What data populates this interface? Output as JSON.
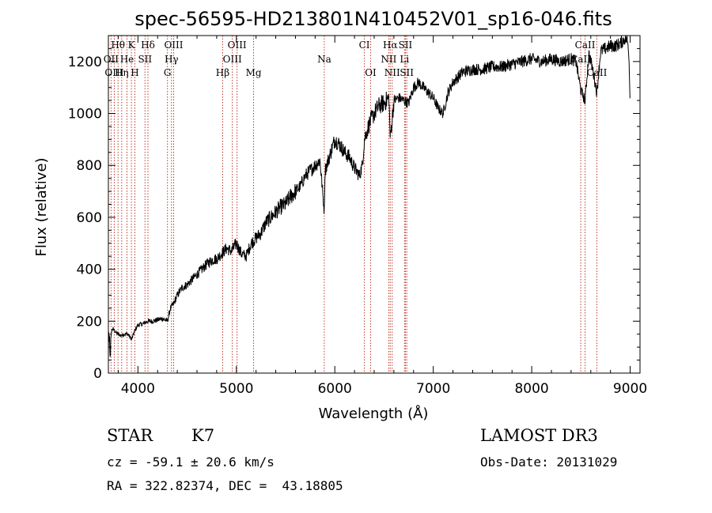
{
  "chart_data": {
    "type": "line",
    "title": "spec-56595-HD213801N410452V01_sp16-046.fits",
    "xlabel": "Wavelength (Å)",
    "ylabel": "Flux (relative)",
    "xlim": [
      3700,
      9100
    ],
    "ylim": [
      0,
      1300
    ],
    "xticks": [
      4000,
      5000,
      6000,
      7000,
      8000,
      9000
    ],
    "yticks": [
      0,
      200,
      400,
      600,
      800,
      1000,
      1200
    ],
    "spectrum_anchors": {
      "x": [
        3700,
        3720,
        3740,
        3760,
        3780,
        3800,
        3830,
        3860,
        3900,
        3935,
        3970,
        4000,
        4050,
        4100,
        4150,
        4200,
        4250,
        4300,
        4330,
        4360,
        4400,
        4450,
        4500,
        4550,
        4600,
        4650,
        4700,
        4750,
        4800,
        4850,
        4900,
        4950,
        5000,
        5050,
        5100,
        5150,
        5200,
        5250,
        5300,
        5350,
        5400,
        5450,
        5500,
        5550,
        5600,
        5650,
        5700,
        5750,
        5800,
        5850,
        5893,
        5900,
        5950,
        6000,
        6050,
        6100,
        6150,
        6200,
        6250,
        6280,
        6300,
        6350,
        6400,
        6450,
        6500,
        6550,
        6563,
        6600,
        6650,
        6700,
        6750,
        6800,
        6850,
        6900,
        6950,
        7000,
        7050,
        7100,
        7150,
        7200,
        7300,
        7400,
        7500,
        7600,
        7700,
        7800,
        7900,
        8000,
        8100,
        8200,
        8300,
        8400,
        8450,
        8498,
        8542,
        8580,
        8620,
        8662,
        8700,
        8750,
        8800,
        8850,
        8900,
        8950,
        8970,
        8985,
        9000
      ],
      "y": [
        40,
        140,
        170,
        165,
        155,
        150,
        145,
        150,
        150,
        130,
        165,
        185,
        190,
        200,
        200,
        205,
        210,
        200,
        250,
        265,
        300,
        330,
        340,
        360,
        380,
        400,
        420,
        435,
        440,
        460,
        480,
        470,
        500,
        460,
        450,
        500,
        520,
        540,
        580,
        600,
        620,
        640,
        650,
        680,
        700,
        720,
        760,
        780,
        800,
        820,
        620,
        780,
        840,
        900,
        880,
        850,
        830,
        790,
        760,
        800,
        900,
        960,
        1000,
        1030,
        1040,
        1060,
        900,
        1050,
        1060,
        1050,
        1040,
        1100,
        1120,
        1100,
        1080,
        1060,
        1020,
        1000,
        1080,
        1120,
        1160,
        1170,
        1170,
        1180,
        1180,
        1190,
        1200,
        1210,
        1200,
        1210,
        1200,
        1210,
        1200,
        1090,
        1050,
        1230,
        1170,
        1080,
        1240,
        1250,
        1260,
        1260,
        1270,
        1290,
        1280,
        1250,
        1050
      ]
    },
    "spectral_lines": [
      {
        "name": "Hθ",
        "x": 3798,
        "row": 1
      },
      {
        "name": "K",
        "x": 3934,
        "row": 1
      },
      {
        "name": "Hδ",
        "x": 4102,
        "row": 1
      },
      {
        "name": "OIII",
        "x": 4363,
        "row": 1
      },
      {
        "name": "OIII",
        "x": 5007,
        "row": 1
      },
      {
        "name": "Na",
        "x": 5893,
        "row": 2
      },
      {
        "name": "CI",
        "x": 6300,
        "row": 1
      },
      {
        "name": "Hα",
        "x": 6563,
        "row": 1
      },
      {
        "name": "SII",
        "x": 6717,
        "row": 1
      },
      {
        "name": "CaII",
        "x": 8542,
        "row": 1
      },
      {
        "name": "OII",
        "x": 3727,
        "row": 2
      },
      {
        "name": "He",
        "x": 3889,
        "row": 2
      },
      {
        "name": "SII",
        "x": 4072,
        "row": 2
      },
      {
        "name": "Hγ",
        "x": 4341,
        "row": 2
      },
      {
        "name": "OIII",
        "x": 4959,
        "row": 2
      },
      {
        "name": "NII",
        "x": 6548,
        "row": 2
      },
      {
        "name": "Li",
        "x": 6708,
        "row": 2
      },
      {
        "name": "CaII",
        "x": 8498,
        "row": 2
      },
      {
        "name": "OIII",
        "x": 3760,
        "row": 3
      },
      {
        "name": "Hη",
        "x": 3835,
        "row": 3
      },
      {
        "name": "H",
        "x": 3969,
        "row": 3
      },
      {
        "name": "G",
        "x": 4300,
        "row": 3
      },
      {
        "name": "Hβ",
        "x": 4861,
        "row": 3
      },
      {
        "name": "Mg",
        "x": 5175,
        "row": 3
      },
      {
        "name": "OI",
        "x": 6364,
        "row": 3
      },
      {
        "name": "NII",
        "x": 6583,
        "row": 3
      },
      {
        "name": "SII",
        "x": 6731,
        "row": 3
      },
      {
        "name": "CaII",
        "x": 8662,
        "row": 3
      }
    ]
  },
  "info": {
    "object_class": "STAR",
    "subclass": "K7",
    "survey": "LAMOST DR3",
    "cz": "cz = -59.1 ± 20.6 km/s",
    "obs_date": "Obs-Date: 20131029",
    "coords": "RA = 322.82374, DEC =  43.18805"
  },
  "colors": {
    "spectrum": "#000000",
    "lines": "#c0392b",
    "axes": "#000000",
    "background": "#ffffff"
  }
}
